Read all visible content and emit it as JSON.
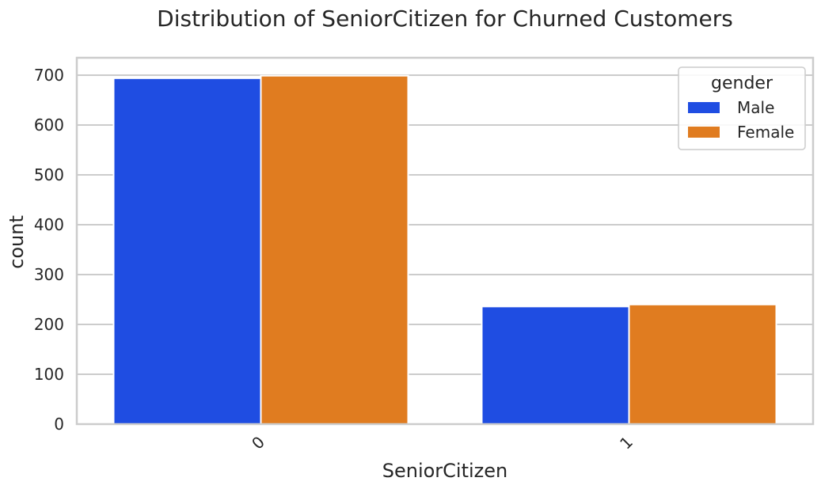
{
  "chart_data": {
    "type": "bar",
    "title": "Distribution of SeniorCitizen for Churned Customers",
    "xlabel": "SeniorCitizen",
    "ylabel": "count",
    "categories": [
      "0",
      "1"
    ],
    "series": [
      {
        "name": "Male",
        "values": [
          694,
          236
        ],
        "color": "#1f4de2"
      },
      {
        "name": "Female",
        "values": [
          699,
          240
        ],
        "color": "#e07c20"
      }
    ],
    "ylim": [
      0,
      735
    ],
    "yticks": [
      0,
      100,
      200,
      300,
      400,
      500,
      600,
      700
    ],
    "grid": "horizontal",
    "legend": {
      "title": "gender",
      "placement": "top-right"
    }
  }
}
